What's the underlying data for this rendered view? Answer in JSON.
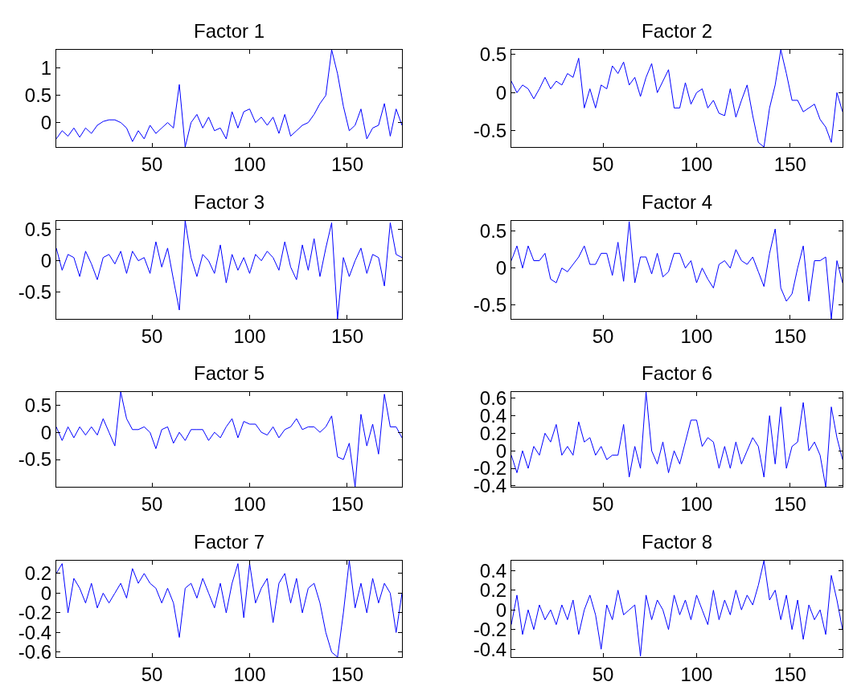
{
  "chart_data": [
    {
      "type": "line",
      "title": "Factor 1",
      "color": "#0000ff",
      "xlim": [
        1,
        178
      ],
      "xticks": [
        50,
        100,
        150
      ],
      "ylim": [
        -0.45,
        1.34
      ],
      "yticks": [
        0,
        0.5,
        1
      ],
      "grid": false,
      "x": [
        1,
        4,
        7,
        10,
        13,
        16,
        19,
        22,
        25,
        28,
        31,
        34,
        37,
        40,
        43,
        46,
        49,
        52,
        55,
        58,
        61,
        64,
        67,
        70,
        73,
        76,
        79,
        82,
        85,
        88,
        91,
        94,
        97,
        100,
        103,
        106,
        109,
        112,
        115,
        118,
        121,
        124,
        127,
        130,
        133,
        136,
        139,
        142,
        145,
        148,
        151,
        154,
        157,
        160,
        163,
        166,
        169,
        172,
        175,
        178
      ],
      "values": [
        -0.3,
        -0.15,
        -0.25,
        -0.1,
        -0.27,
        -0.1,
        -0.2,
        -0.05,
        0.02,
        0.05,
        0.05,
        0.0,
        -0.1,
        -0.35,
        -0.15,
        -0.3,
        -0.05,
        -0.2,
        -0.1,
        0.0,
        -0.1,
        0.7,
        -0.45,
        0.0,
        0.15,
        -0.1,
        0.1,
        -0.15,
        -0.1,
        -0.3,
        0.2,
        -0.1,
        0.2,
        0.25,
        0.0,
        0.1,
        -0.05,
        0.1,
        -0.2,
        0.15,
        -0.25,
        -0.15,
        -0.05,
        0.0,
        0.15,
        0.35,
        0.5,
        1.34,
        0.9,
        0.3,
        -0.15,
        -0.05,
        0.25,
        -0.3,
        -0.1,
        -0.05,
        0.35,
        -0.25,
        0.25,
        -0.05
      ]
    },
    {
      "type": "line",
      "title": "Factor 2",
      "color": "#0000ff",
      "xlim": [
        1,
        178
      ],
      "xticks": [
        50,
        100,
        150
      ],
      "ylim": [
        -0.71,
        0.56
      ],
      "yticks": [
        -0.5,
        0,
        0.5
      ],
      "grid": false,
      "x": [
        1,
        4,
        7,
        10,
        13,
        16,
        19,
        22,
        25,
        28,
        31,
        34,
        37,
        40,
        43,
        46,
        49,
        52,
        55,
        58,
        61,
        64,
        67,
        70,
        73,
        76,
        79,
        82,
        85,
        88,
        91,
        94,
        97,
        100,
        103,
        106,
        109,
        112,
        115,
        118,
        121,
        124,
        127,
        130,
        133,
        136,
        139,
        142,
        145,
        148,
        151,
        154,
        157,
        160,
        163,
        166,
        169,
        172,
        175,
        178
      ],
      "values": [
        0.15,
        0.0,
        0.1,
        0.05,
        -0.08,
        0.05,
        0.2,
        0.05,
        0.15,
        0.1,
        0.25,
        0.2,
        0.45,
        -0.2,
        0.05,
        -0.2,
        0.1,
        0.05,
        0.35,
        0.25,
        0.4,
        0.1,
        0.2,
        -0.05,
        0.2,
        0.38,
        0.0,
        0.15,
        0.3,
        -0.2,
        -0.2,
        0.13,
        -0.15,
        0.0,
        0.05,
        -0.2,
        -0.1,
        -0.27,
        -0.3,
        0.05,
        -0.32,
        -0.1,
        0.1,
        -0.3,
        -0.65,
        -0.71,
        -0.2,
        0.1,
        0.56,
        0.25,
        -0.1,
        -0.1,
        -0.25,
        -0.2,
        -0.15,
        -0.35,
        -0.45,
        -0.65,
        0.0,
        -0.25
      ]
    },
    {
      "type": "line",
      "title": "Factor 3",
      "color": "#0000ff",
      "xlim": [
        1,
        178
      ],
      "xticks": [
        50,
        100,
        150
      ],
      "ylim": [
        -0.92,
        0.63
      ],
      "yticks": [
        -0.5,
        0,
        0.5
      ],
      "grid": false,
      "x": [
        1,
        4,
        7,
        10,
        13,
        16,
        19,
        22,
        25,
        28,
        31,
        34,
        37,
        40,
        43,
        46,
        49,
        52,
        55,
        58,
        61,
        64,
        67,
        70,
        73,
        76,
        79,
        82,
        85,
        88,
        91,
        94,
        97,
        100,
        103,
        106,
        109,
        112,
        115,
        118,
        121,
        124,
        127,
        130,
        133,
        136,
        139,
        142,
        145,
        148,
        151,
        154,
        157,
        160,
        163,
        166,
        169,
        172,
        175,
        178
      ],
      "values": [
        0.2,
        -0.15,
        0.1,
        0.05,
        -0.25,
        0.15,
        -0.05,
        -0.3,
        0.05,
        0.1,
        -0.05,
        0.15,
        -0.2,
        0.15,
        0.0,
        0.05,
        -0.2,
        0.3,
        -0.1,
        0.2,
        -0.3,
        -0.78,
        0.63,
        0.05,
        -0.25,
        0.1,
        0.0,
        -0.2,
        0.25,
        -0.35,
        0.1,
        -0.15,
        0.05,
        -0.2,
        0.1,
        0.0,
        0.15,
        0.05,
        -0.15,
        0.3,
        -0.1,
        -0.3,
        0.25,
        -0.15,
        0.35,
        -0.25,
        0.2,
        0.6,
        -0.92,
        0.05,
        -0.25,
        0.0,
        0.2,
        -0.2,
        0.1,
        0.05,
        -0.4,
        0.6,
        0.1,
        0.05
      ]
    },
    {
      "type": "line",
      "title": "Factor 4",
      "color": "#0000ff",
      "xlim": [
        1,
        178
      ],
      "xticks": [
        50,
        100,
        150
      ],
      "ylim": [
        -0.69,
        0.64
      ],
      "yticks": [
        -0.5,
        0,
        0.5
      ],
      "grid": false,
      "x": [
        1,
        4,
        7,
        10,
        13,
        16,
        19,
        22,
        25,
        28,
        31,
        34,
        37,
        40,
        43,
        46,
        49,
        52,
        55,
        58,
        61,
        64,
        67,
        70,
        73,
        76,
        79,
        82,
        85,
        88,
        91,
        94,
        97,
        100,
        103,
        106,
        109,
        112,
        115,
        118,
        121,
        124,
        127,
        130,
        133,
        136,
        139,
        142,
        145,
        148,
        151,
        154,
        157,
        160,
        163,
        166,
        169,
        172,
        175,
        178
      ],
      "values": [
        0.1,
        0.3,
        0.0,
        0.3,
        0.1,
        0.1,
        0.2,
        -0.15,
        -0.2,
        0.0,
        -0.05,
        0.05,
        0.15,
        0.3,
        0.05,
        0.05,
        0.2,
        0.2,
        -0.1,
        0.35,
        -0.18,
        0.63,
        -0.2,
        0.15,
        0.15,
        -0.08,
        0.2,
        -0.12,
        -0.05,
        0.2,
        0.2,
        0.0,
        0.1,
        -0.2,
        0.0,
        -0.15,
        -0.27,
        0.05,
        0.1,
        0.0,
        0.25,
        0.1,
        0.05,
        0.15,
        -0.05,
        -0.25,
        0.2,
        0.53,
        -0.27,
        -0.45,
        -0.35,
        0.0,
        0.3,
        -0.45,
        0.1,
        0.1,
        0.15,
        -0.69,
        0.1,
        -0.2
      ]
    },
    {
      "type": "line",
      "title": "Factor 5",
      "color": "#0000ff",
      "xlim": [
        1,
        178
      ],
      "xticks": [
        50,
        100,
        150
      ],
      "ylim": [
        -1.0,
        0.74
      ],
      "yticks": [
        -0.5,
        0,
        0.5
      ],
      "grid": false,
      "x": [
        1,
        4,
        7,
        10,
        13,
        16,
        19,
        22,
        25,
        28,
        31,
        34,
        37,
        40,
        43,
        46,
        49,
        52,
        55,
        58,
        61,
        64,
        67,
        70,
        73,
        76,
        79,
        82,
        85,
        88,
        91,
        94,
        97,
        100,
        103,
        106,
        109,
        112,
        115,
        118,
        121,
        124,
        127,
        130,
        133,
        136,
        139,
        142,
        145,
        148,
        151,
        154,
        157,
        160,
        163,
        166,
        169,
        172,
        175,
        178
      ],
      "values": [
        0.1,
        -0.15,
        0.1,
        -0.1,
        0.1,
        -0.05,
        0.1,
        -0.05,
        0.25,
        0.0,
        -0.25,
        0.74,
        0.25,
        0.05,
        0.05,
        0.1,
        0.0,
        -0.3,
        0.05,
        0.1,
        -0.2,
        0.0,
        -0.15,
        0.05,
        0.05,
        0.05,
        -0.15,
        0.0,
        -0.1,
        0.1,
        0.25,
        -0.1,
        0.2,
        0.15,
        0.15,
        0.0,
        -0.05,
        0.1,
        -0.1,
        0.05,
        0.1,
        0.25,
        0.05,
        0.1,
        0.1,
        0.0,
        0.1,
        0.3,
        -0.45,
        -0.5,
        -0.2,
        -1.0,
        0.33,
        -0.25,
        0.15,
        -0.4,
        0.7,
        0.1,
        0.1,
        -0.1
      ]
    },
    {
      "type": "line",
      "title": "Factor 6",
      "color": "#0000ff",
      "xlim": [
        1,
        178
      ],
      "xticks": [
        50,
        100,
        150
      ],
      "ylim": [
        -0.41,
        0.67
      ],
      "yticks": [
        -0.4,
        -0.2,
        0,
        0.2,
        0.4,
        0.6
      ],
      "grid": false,
      "x": [
        1,
        4,
        7,
        10,
        13,
        16,
        19,
        22,
        25,
        28,
        31,
        34,
        37,
        40,
        43,
        46,
        49,
        52,
        55,
        58,
        61,
        64,
        67,
        70,
        73,
        76,
        79,
        82,
        85,
        88,
        91,
        94,
        97,
        100,
        103,
        106,
        109,
        112,
        115,
        118,
        121,
        124,
        127,
        130,
        133,
        136,
        139,
        142,
        145,
        148,
        151,
        154,
        157,
        160,
        163,
        166,
        169,
        172,
        175,
        178
      ],
      "values": [
        -0.05,
        -0.25,
        0.0,
        -0.2,
        0.05,
        -0.05,
        0.2,
        0.1,
        0.3,
        -0.05,
        0.05,
        -0.05,
        0.33,
        0.1,
        0.15,
        -0.05,
        0.05,
        -0.1,
        -0.05,
        -0.05,
        0.3,
        -0.3,
        0.05,
        -0.2,
        0.67,
        0.0,
        -0.15,
        0.1,
        -0.25,
        0.0,
        -0.15,
        0.1,
        0.35,
        0.35,
        0.05,
        0.15,
        0.1,
        -0.2,
        0.05,
        -0.2,
        0.1,
        -0.15,
        0.0,
        0.15,
        0.05,
        -0.3,
        0.4,
        -0.15,
        0.5,
        -0.2,
        0.05,
        0.1,
        0.55,
        0.0,
        0.1,
        -0.05,
        -0.41,
        0.5,
        0.15,
        -0.1
      ]
    },
    {
      "type": "line",
      "title": "Factor 7",
      "color": "#0000ff",
      "xlim": [
        1,
        178
      ],
      "xticks": [
        50,
        100,
        150
      ],
      "ylim": [
        -0.65,
        0.33
      ],
      "yticks": [
        -0.6,
        -0.4,
        -0.2,
        0,
        0.2
      ],
      "grid": false,
      "x": [
        1,
        4,
        7,
        10,
        13,
        16,
        19,
        22,
        25,
        28,
        31,
        34,
        37,
        40,
        43,
        46,
        49,
        52,
        55,
        58,
        61,
        64,
        67,
        70,
        73,
        76,
        79,
        82,
        85,
        88,
        91,
        94,
        97,
        100,
        103,
        106,
        109,
        112,
        115,
        118,
        121,
        124,
        127,
        130,
        133,
        136,
        139,
        142,
        145,
        148,
        151,
        154,
        157,
        160,
        163,
        166,
        169,
        172,
        175,
        178
      ],
      "values": [
        0.2,
        0.3,
        -0.2,
        0.15,
        0.05,
        -0.1,
        0.1,
        -0.15,
        0.0,
        -0.1,
        0.0,
        0.1,
        -0.05,
        0.25,
        0.1,
        0.2,
        0.1,
        0.05,
        -0.1,
        0.05,
        -0.1,
        -0.45,
        0.05,
        0.1,
        -0.05,
        0.15,
        0.0,
        -0.15,
        0.1,
        -0.2,
        0.1,
        0.3,
        -0.25,
        0.3,
        -0.1,
        0.05,
        0.15,
        -0.3,
        0.1,
        0.2,
        -0.1,
        0.15,
        -0.2,
        0.05,
        0.1,
        -0.1,
        -0.4,
        -0.6,
        -0.65,
        -0.2,
        0.33,
        -0.15,
        0.1,
        -0.2,
        0.15,
        -0.1,
        0.1,
        0.0,
        -0.4,
        0.0
      ]
    },
    {
      "type": "line",
      "title": "Factor 8",
      "color": "#0000ff",
      "xlim": [
        1,
        178
      ],
      "xticks": [
        50,
        100,
        150
      ],
      "ylim": [
        -0.48,
        0.5
      ],
      "yticks": [
        -0.4,
        -0.2,
        0,
        0.2,
        0.4
      ],
      "grid": false,
      "x": [
        1,
        4,
        7,
        10,
        13,
        16,
        19,
        22,
        25,
        28,
        31,
        34,
        37,
        40,
        43,
        46,
        49,
        52,
        55,
        58,
        61,
        64,
        67,
        70,
        73,
        76,
        79,
        82,
        85,
        88,
        91,
        94,
        97,
        100,
        103,
        106,
        109,
        112,
        115,
        118,
        121,
        124,
        127,
        130,
        133,
        136,
        139,
        142,
        145,
        148,
        151,
        154,
        157,
        160,
        163,
        166,
        169,
        172,
        175,
        178
      ],
      "values": [
        -0.15,
        0.15,
        -0.25,
        0.0,
        -0.2,
        0.05,
        -0.1,
        0.0,
        -0.15,
        0.05,
        -0.1,
        0.1,
        -0.25,
        0.0,
        0.15,
        -0.05,
        -0.4,
        0.05,
        -0.1,
        0.2,
        -0.05,
        0.0,
        0.05,
        -0.47,
        0.15,
        -0.1,
        0.1,
        0.0,
        -0.2,
        0.15,
        -0.05,
        0.1,
        -0.1,
        0.15,
        0.0,
        -0.15,
        0.2,
        -0.1,
        0.1,
        -0.05,
        0.2,
        0.0,
        0.15,
        0.05,
        0.25,
        0.5,
        0.1,
        0.2,
        -0.1,
        0.15,
        -0.2,
        0.1,
        -0.3,
        0.05,
        -0.1,
        0.0,
        -0.25,
        0.35,
        0.1,
        -0.2
      ]
    }
  ]
}
